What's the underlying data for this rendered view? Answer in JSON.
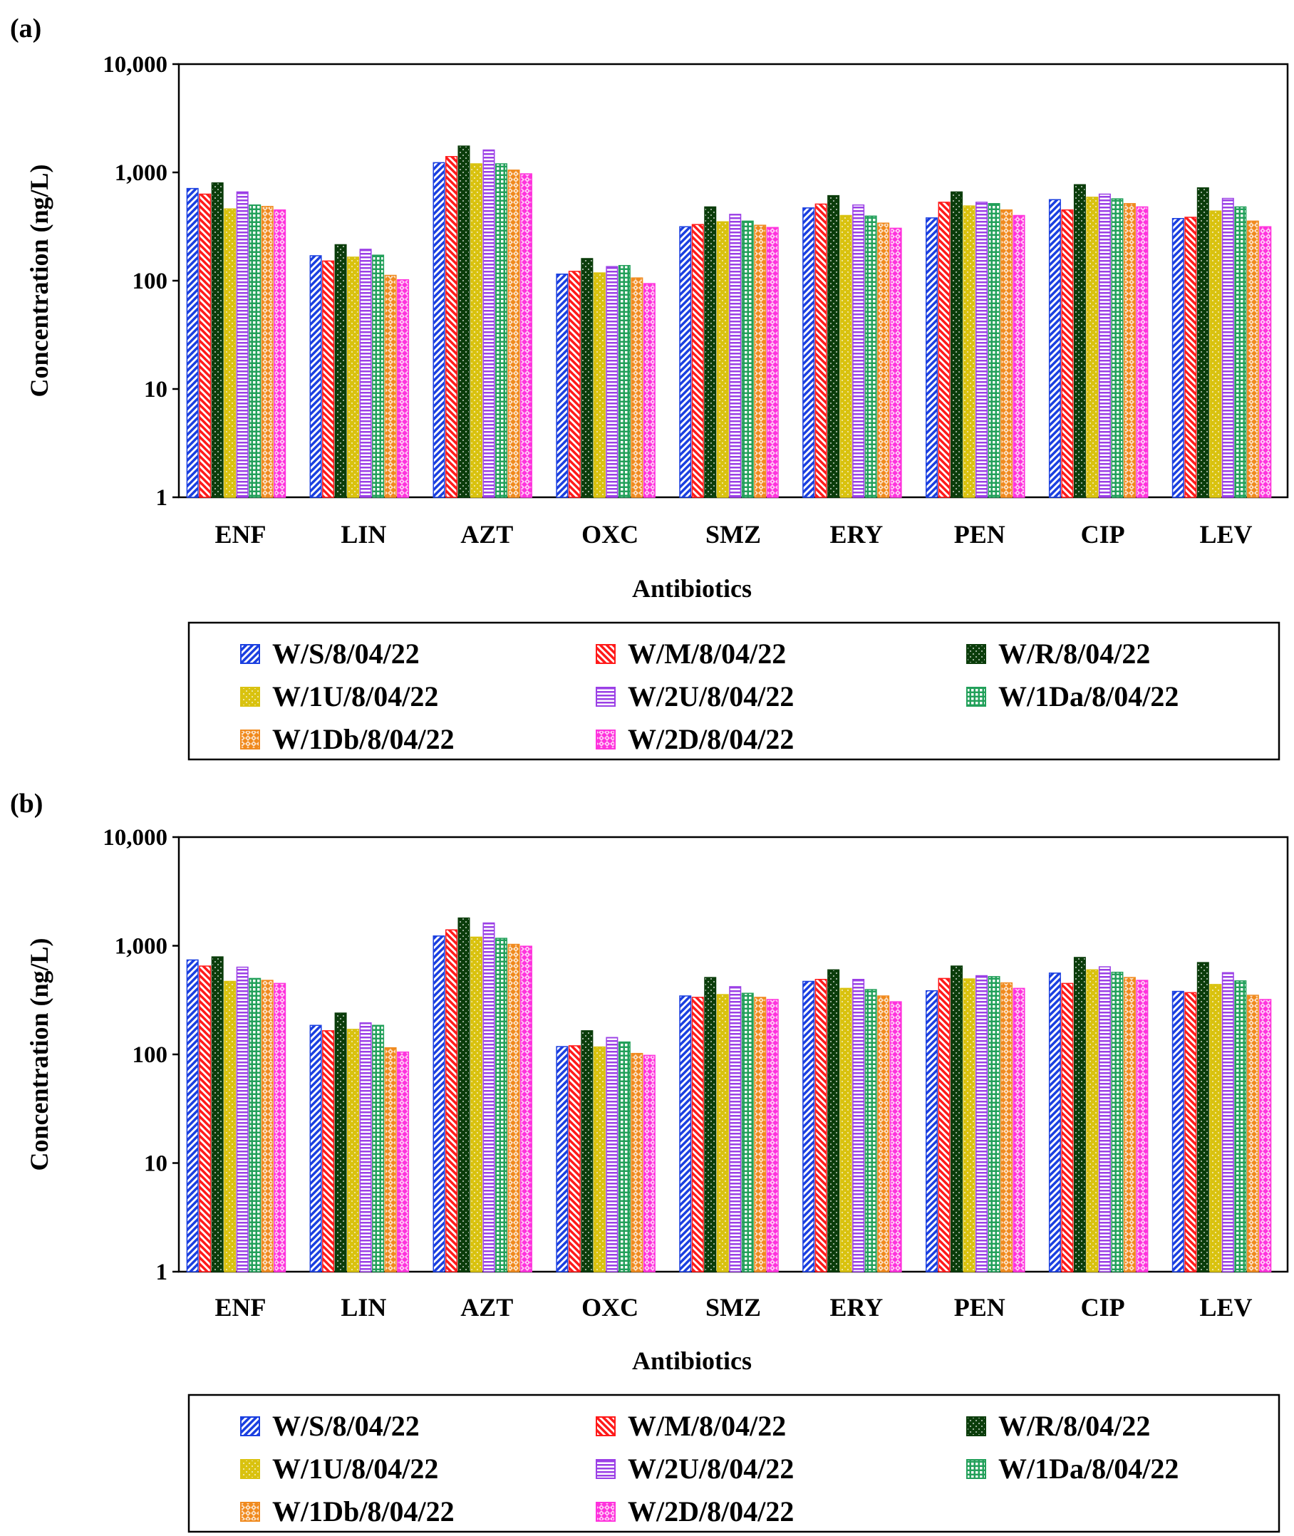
{
  "chart_data": [
    {
      "panel_label": "(a)",
      "type": "bar",
      "ylabel": "Concentration (ng/L)",
      "xlabel": "Antibiotics",
      "yscale": "log",
      "ylim": [
        1,
        10000
      ],
      "yticks": [
        1,
        10,
        100,
        1000,
        10000
      ],
      "ytick_labels": [
        "1",
        "10",
        "100",
        "1,000",
        "10,000"
      ],
      "legend_position": "bottom",
      "categories": [
        "ENF",
        "LIN",
        "AZT",
        "OXC",
        "SMZ",
        "ERY",
        "PEN",
        "CIP",
        "LEV"
      ],
      "series": [
        {
          "name": "W/S/8/04/22",
          "color": "#1a3fe0",
          "pattern": "diag-up",
          "values": [
            710,
            170,
            1230,
            115,
            315,
            470,
            380,
            560,
            375
          ]
        },
        {
          "name": "W/M/8/04/22",
          "color": "#ff1a1a",
          "pattern": "diag-down",
          "values": [
            630,
            152,
            1400,
            122,
            330,
            510,
            530,
            450,
            385
          ]
        },
        {
          "name": "W/R/8/04/22",
          "color": "#0b3d0b",
          "pattern": "dots",
          "values": [
            800,
            215,
            1750,
            160,
            480,
            610,
            660,
            770,
            720
          ]
        },
        {
          "name": "W/1U/8/04/22",
          "color": "#d9c20f",
          "pattern": "dots",
          "values": [
            460,
            165,
            1200,
            118,
            350,
            400,
            490,
            590,
            440
          ]
        },
        {
          "name": "W/2U/8/04/22",
          "color": "#9b3fe6",
          "pattern": "horizontal",
          "values": [
            660,
            195,
            1610,
            135,
            410,
            500,
            530,
            630,
            575
          ]
        },
        {
          "name": "W/1Da/8/04/22",
          "color": "#22a05a",
          "pattern": "grid",
          "values": [
            500,
            172,
            1200,
            138,
            355,
            395,
            515,
            570,
            480
          ]
        },
        {
          "name": "W/1Db/8/04/22",
          "color": "#f08a1e",
          "pattern": "checker",
          "values": [
            485,
            112,
            1050,
            106,
            325,
            340,
            450,
            515,
            355
          ]
        },
        {
          "name": "W/2D/8/04/22",
          "color": "#ff33dd",
          "pattern": "checker",
          "values": [
            450,
            102,
            970,
            94,
            310,
            305,
            400,
            480,
            315
          ]
        }
      ]
    },
    {
      "panel_label": "(b)",
      "type": "bar",
      "ylabel": "Concentration (ng/L)",
      "xlabel": "Antibiotics",
      "yscale": "log",
      "ylim": [
        1,
        10000
      ],
      "yticks": [
        1,
        10,
        100,
        1000,
        10000
      ],
      "ytick_labels": [
        "1",
        "10",
        "100",
        "1,000",
        "10,000"
      ],
      "legend_position": "bottom",
      "categories": [
        "ENF",
        "LIN",
        "AZT",
        "OXC",
        "SMZ",
        "ERY",
        "PEN",
        "CIP",
        "LEV"
      ],
      "series": [
        {
          "name": "W/S/8/04/22",
          "color": "#1a3fe0",
          "pattern": "diag-up",
          "values": [
            740,
            185,
            1230,
            118,
            345,
            470,
            385,
            560,
            380
          ]
        },
        {
          "name": "W/M/8/04/22",
          "color": "#ff1a1a",
          "pattern": "diag-down",
          "values": [
            650,
            165,
            1400,
            120,
            335,
            490,
            500,
            450,
            370
          ]
        },
        {
          "name": "W/R/8/04/22",
          "color": "#0b3d0b",
          "pattern": "dots",
          "values": [
            790,
            240,
            1800,
            165,
            510,
            600,
            650,
            780,
            700
          ]
        },
        {
          "name": "W/1U/8/04/22",
          "color": "#d9c20f",
          "pattern": "dots",
          "values": [
            470,
            170,
            1200,
            117,
            355,
            405,
            495,
            600,
            440
          ]
        },
        {
          "name": "W/2U/8/04/22",
          "color": "#9b3fe6",
          "pattern": "horizontal",
          "values": [
            635,
            195,
            1620,
            143,
            420,
            490,
            530,
            640,
            565
          ]
        },
        {
          "name": "W/1Da/8/04/22",
          "color": "#22a05a",
          "pattern": "grid",
          "values": [
            500,
            185,
            1170,
            130,
            365,
            395,
            520,
            570,
            475
          ]
        },
        {
          "name": "W/1Db/8/04/22",
          "color": "#f08a1e",
          "pattern": "checker",
          "values": [
            480,
            115,
            1030,
            102,
            335,
            345,
            455,
            510,
            350
          ]
        },
        {
          "name": "W/2D/8/04/22",
          "color": "#ff33dd",
          "pattern": "checker",
          "values": [
            450,
            105,
            990,
            98,
            320,
            305,
            405,
            480,
            320
          ]
        }
      ]
    }
  ]
}
